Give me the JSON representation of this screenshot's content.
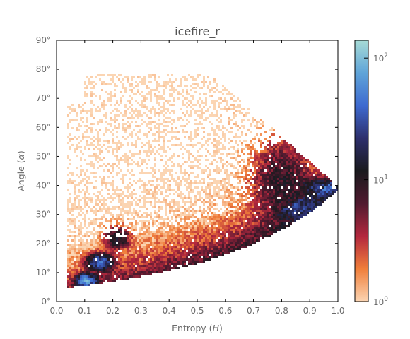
{
  "chart_data": {
    "type": "heatmap",
    "title": "icefire_r",
    "xlabel": "Entropy (H)",
    "ylabel": "Angle (α)",
    "xlim": [
      0.0,
      1.0
    ],
    "ylim": [
      0,
      90
    ],
    "x_ticks": [
      "0.0",
      "0.1",
      "0.2",
      "0.3",
      "0.4",
      "0.5",
      "0.6",
      "0.7",
      "0.8",
      "0.9",
      "1.0"
    ],
    "y_ticks": [
      "0°",
      "10°",
      "20°",
      "30°",
      "40°",
      "50°",
      "60°",
      "70°",
      "80°",
      "90°"
    ],
    "grid": false,
    "colormap": "icefire_r",
    "colorbar": {
      "scale": "log",
      "range": [
        1,
        140
      ],
      "ticks": [
        {
          "value": 1,
          "base": "10",
          "exp": "0"
        },
        {
          "value": 10,
          "base": "10",
          "exp": "1"
        },
        {
          "value": 100,
          "base": "10",
          "exp": "2"
        }
      ],
      "colors": [
        "#fbd5b3",
        "#f07e3a",
        "#b3283e",
        "#501a2f",
        "#1a1a1e",
        "#2d2f6c",
        "#3e6ad0",
        "#5fa4d8",
        "#a7dbd6"
      ]
    },
    "density_regions": [
      {
        "entropy": 0.1,
        "angle_deg": 7,
        "count": 80
      },
      {
        "entropy": 0.15,
        "angle_deg": 13,
        "count": 45
      },
      {
        "entropy": 0.21,
        "angle_deg": 22,
        "count": 15
      },
      {
        "entropy": 0.85,
        "angle_deg": 42,
        "count": 12
      },
      {
        "entropy": 0.93,
        "angle_deg": 39,
        "count": 50
      }
    ]
  }
}
